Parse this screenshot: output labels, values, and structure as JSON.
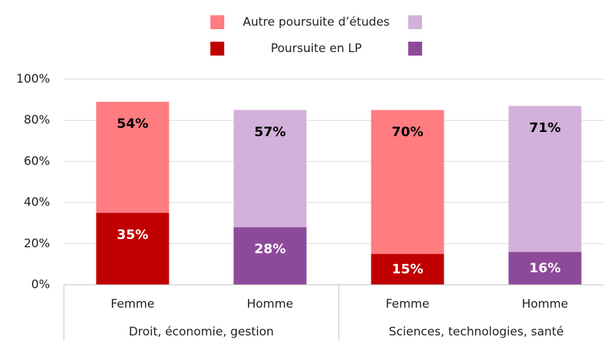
{
  "chart_data": {
    "type": "stacked_bar",
    "categories": [
      "Femme",
      "Homme",
      "Femme",
      "Homme"
    ],
    "groups": [
      {
        "label": "Droit, économie, gestion",
        "span": 2
      },
      {
        "label": "Sciences, technologies, santé",
        "span": 2
      }
    ],
    "series": [
      {
        "name": "Poursuite en LP",
        "colors": [
          "#c00000",
          "#8e4a9a",
          "#c00000",
          "#8e4a9a"
        ],
        "values": [
          35,
          28,
          15,
          16
        ],
        "value_labels": [
          "35%",
          "28%",
          "15%",
          "16%"
        ]
      },
      {
        "name": "Autre poursuite d’études",
        "colors": [
          "#ff7c80",
          "#d2b1da",
          "#ff7c80",
          "#d2b1da"
        ],
        "values": [
          54,
          57,
          70,
          71
        ],
        "value_labels": [
          "54%",
          "57%",
          "70%",
          "71%"
        ]
      }
    ],
    "ylim": [
      0,
      100
    ],
    "yticks": [
      {
        "value": 0,
        "label": "0%"
      },
      {
        "value": 20,
        "label": "20%"
      },
      {
        "value": 40,
        "label": "40%"
      },
      {
        "value": 60,
        "label": "60%"
      },
      {
        "value": 80,
        "label": "80%"
      },
      {
        "value": 100,
        "label": "100%"
      }
    ],
    "grid": true
  }
}
